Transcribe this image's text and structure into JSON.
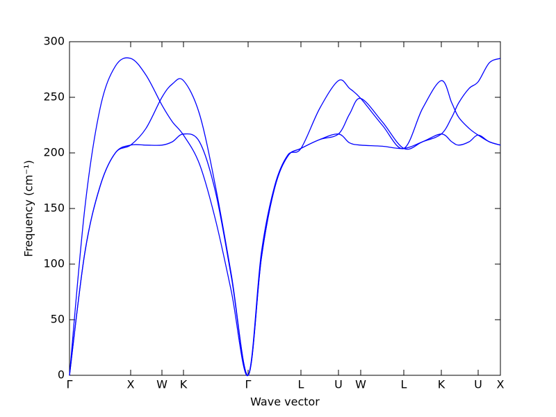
{
  "chart_data": {
    "type": "line",
    "xlabel": "Wave vector",
    "ylabel": "Frequency (cm⁻¹)",
    "xlim": [
      0,
      6.2
    ],
    "ylim": [
      0,
      300
    ],
    "yticks": [
      0,
      50,
      100,
      150,
      200,
      250,
      300
    ],
    "xticks": [
      {
        "value": 0,
        "label": "Γ"
      },
      {
        "value": 0.88,
        "label": "X"
      },
      {
        "value": 1.33,
        "label": "W"
      },
      {
        "value": 1.64,
        "label": "K"
      },
      {
        "value": 2.57,
        "label": "Γ"
      },
      {
        "value": 3.33,
        "label": "L"
      },
      {
        "value": 3.87,
        "label": "U"
      },
      {
        "value": 4.19,
        "label": "W"
      },
      {
        "value": 4.81,
        "label": "L"
      },
      {
        "value": 5.35,
        "label": "K"
      },
      {
        "value": 5.88,
        "label": "U"
      },
      {
        "value": 6.2,
        "label": "X"
      }
    ],
    "x": [
      0,
      0.22,
      0.44,
      0.66,
      0.88,
      1.1,
      1.33,
      1.48,
      1.64,
      1.87,
      2.1,
      2.33,
      2.57,
      2.76,
      2.95,
      3.14,
      3.33,
      3.6,
      3.87,
      4.03,
      4.19,
      4.5,
      4.81,
      5.08,
      5.35,
      5.5,
      5.6,
      5.75,
      5.88,
      6.04,
      6.2
    ],
    "series": [
      {
        "color": "#0000ff",
        "values": [
          0,
          150,
          240,
          278,
          285,
          270,
          243,
          228,
          216,
          190,
          140,
          75,
          0,
          110,
          170,
          198,
          204,
          240,
          265,
          258,
          249,
          225,
          204,
          240,
          265,
          245,
          232,
          222,
          216,
          210,
          207
        ]
      },
      {
        "color": "#0000ff",
        "values": [
          0,
          110,
          170,
          200,
          207,
          222,
          250,
          262,
          265,
          235,
          170,
          90,
          0,
          105,
          168,
          197,
          204,
          212,
          217,
          235,
          249,
          228,
          204,
          210,
          217,
          232,
          245,
          258,
          264,
          281,
          285
        ]
      },
      {
        "color": "#0000ff",
        "values": [
          0,
          110,
          170,
          200,
          207,
          207,
          207,
          210,
          217,
          210,
          165,
          88,
          0,
          105,
          168,
          197,
          204,
          212,
          217,
          209,
          207,
          206,
          204,
          210,
          217,
          210,
          207,
          210,
          216,
          210,
          207
        ]
      }
    ]
  }
}
